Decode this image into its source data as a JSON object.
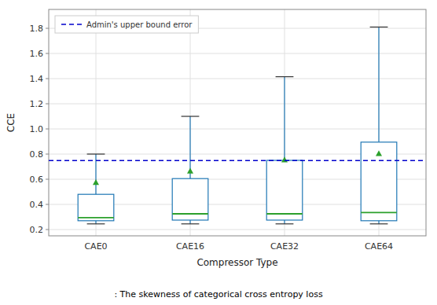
{
  "chart_data": {
    "type": "box",
    "categories": [
      "CAE0",
      "CAE16",
      "CAE32",
      "CAE64"
    ],
    "boxes": [
      {
        "low": 0.245,
        "q1": 0.27,
        "median": 0.295,
        "q3": 0.48,
        "high": 0.8,
        "mean": 0.575
      },
      {
        "low": 0.245,
        "q1": 0.275,
        "median": 0.325,
        "q3": 0.605,
        "high": 1.1,
        "mean": 0.665
      },
      {
        "low": 0.245,
        "q1": 0.275,
        "median": 0.325,
        "q3": 0.75,
        "high": 1.415,
        "mean": 0.755
      },
      {
        "low": 0.245,
        "q1": 0.27,
        "median": 0.335,
        "q3": 0.895,
        "high": 1.81,
        "mean": 0.805
      }
    ],
    "color": "#1f77b4",
    "marker": "triangle",
    "reference_line": {
      "name": "Admin's upper bound error",
      "value": 0.748,
      "color": "#0000cc",
      "line_style": "dashed"
    },
    "x_label": "Compressor Type",
    "y_label": "CCE",
    "annotations": [
      ": The skewness of categorical cross entropy loss"
    ],
    "ylim": [
      0.15,
      1.95
    ],
    "yticks": [
      0.2,
      0.4,
      0.6,
      0.8,
      {
        "value": 1,
        "label": "1.0"
      },
      1.2,
      1.4,
      1.6,
      1.8
    ],
    "grid": true,
    "legend": "upper left"
  }
}
